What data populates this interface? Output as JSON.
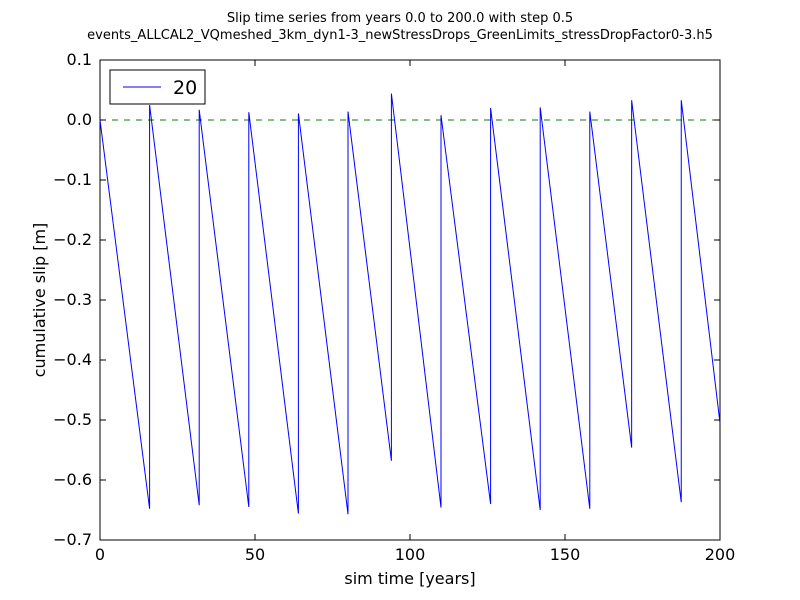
{
  "chart_data": {
    "type": "line",
    "title": "Slip time series from years 0.0 to 200.0 with step 0.5",
    "subtitle": "events_ALLCAL2_VQmeshed_3km_dyn1-3_newStressDrops_GreenLimits_stressDropFactor0-3.h5",
    "xlabel": "sim time [years]",
    "ylabel": "cumulative slip [m]",
    "xlim": [
      0,
      200
    ],
    "ylim": [
      -0.7,
      0.1
    ],
    "x_ticks": [
      0,
      50,
      100,
      150,
      200
    ],
    "y_ticks": [
      0.1,
      0.0,
      -0.1,
      -0.2,
      -0.3,
      -0.4,
      -0.5,
      -0.6,
      -0.7
    ],
    "x_tick_labels": [
      "0",
      "50",
      "100",
      "150",
      "200"
    ],
    "y_tick_labels": [
      "0.1",
      "0.0",
      "−0.1",
      "−0.2",
      "−0.3",
      "−0.4",
      "−0.5",
      "−0.6",
      "−0.7"
    ],
    "grid": false,
    "legend_position": "top-left",
    "series": [
      {
        "name": "20",
        "color": "#0000ff",
        "x": [
          0,
          16,
          16,
          32,
          32,
          48,
          48,
          64,
          64,
          80,
          80,
          94,
          94,
          110,
          110,
          126,
          126,
          142,
          142,
          158,
          158,
          171.5,
          171.5,
          187.5,
          187.5,
          200
        ],
        "y": [
          0.0,
          -0.648,
          0.025,
          -0.642,
          0.017,
          -0.645,
          0.013,
          -0.656,
          0.011,
          -0.657,
          0.014,
          -0.568,
          0.044,
          -0.646,
          0.008,
          -0.64,
          0.02,
          -0.65,
          0.021,
          -0.648,
          0.014,
          -0.546,
          0.033,
          -0.637,
          0.033,
          -0.505
        ]
      }
    ],
    "reference_lines": [
      {
        "y": 0.0,
        "color": "#008000",
        "style": "dashed"
      }
    ]
  }
}
